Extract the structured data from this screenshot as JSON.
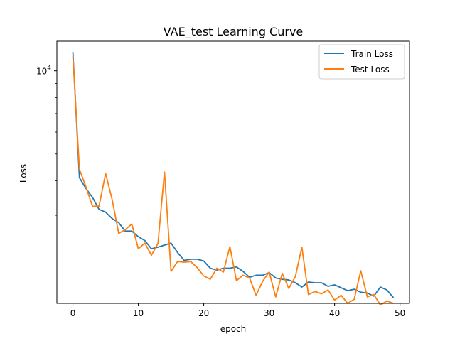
{
  "chart_data": {
    "type": "line",
    "title": "VAE_test Learning Curve",
    "xlabel": "epoch",
    "ylabel": "Loss",
    "yscale": "log",
    "xlim": [
      -2.45,
      51.45
    ],
    "ylim": [
      1440,
      12800
    ],
    "x_ticks": [
      0,
      10,
      20,
      30,
      40,
      50
    ],
    "y_ticks": [
      {
        "value": 10000,
        "base": "10",
        "exp": "4"
      }
    ],
    "legend_position": "top-right",
    "grid": false,
    "x": [
      0,
      1,
      2,
      3,
      4,
      5,
      6,
      7,
      8,
      9,
      10,
      11,
      12,
      13,
      14,
      15,
      16,
      17,
      18,
      19,
      20,
      21,
      22,
      23,
      24,
      25,
      26,
      27,
      28,
      29,
      30,
      31,
      32,
      33,
      34,
      35,
      36,
      37,
      38,
      39,
      40,
      41,
      42,
      43,
      44,
      45,
      46,
      47,
      48,
      49
    ],
    "series": [
      {
        "name": "Train Loss",
        "color": "#1f77b4",
        "values": [
          11700,
          4100,
          3750,
          3480,
          3150,
          3080,
          2920,
          2820,
          2630,
          2630,
          2510,
          2430,
          2270,
          2300,
          2340,
          2380,
          2200,
          2060,
          2080,
          2080,
          2050,
          1930,
          1900,
          1930,
          1930,
          1950,
          1880,
          1790,
          1820,
          1820,
          1860,
          1780,
          1760,
          1750,
          1710,
          1650,
          1720,
          1710,
          1710,
          1660,
          1680,
          1640,
          1600,
          1620,
          1580,
          1570,
          1530,
          1650,
          1610,
          1510
        ]
      },
      {
        "name": "Test Loss",
        "color": "#ff7f0e",
        "values": [
          11300,
          4400,
          3800,
          3230,
          3240,
          4250,
          3420,
          2580,
          2660,
          2790,
          2270,
          2380,
          2150,
          2370,
          4300,
          1880,
          2040,
          2030,
          2040,
          1940,
          1810,
          1760,
          1930,
          1870,
          2310,
          1740,
          1820,
          1780,
          1540,
          1730,
          1870,
          1520,
          1850,
          1630,
          1800,
          2300,
          1550,
          1590,
          1560,
          1610,
          1480,
          1540,
          1440,
          1490,
          1890,
          1520,
          1550,
          1420,
          1470,
          1440
        ]
      }
    ]
  }
}
